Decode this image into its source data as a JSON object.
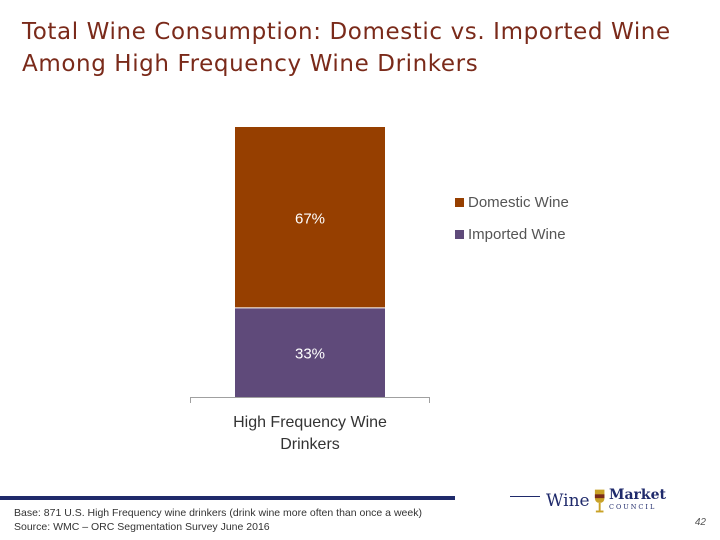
{
  "title_line1": "Total Wine Consumption: Domestic vs. Imported Wine",
  "title_line2": "Among High Frequency Wine Drinkers",
  "chart_data": {
    "type": "bar",
    "stacked": true,
    "categories": [
      "High Frequency Wine Drinkers"
    ],
    "category_lines": [
      "High Frequency Wine",
      "Drinkers"
    ],
    "series": [
      {
        "name": "Domestic Wine",
        "values": [
          67
        ],
        "label": "67%",
        "color": "#963f00"
      },
      {
        "name": "Imported Wine",
        "values": [
          33
        ],
        "label": "33%",
        "color": "#5f4a7a"
      }
    ],
    "ylim": [
      0,
      100
    ],
    "legend_position": "right",
    "grid": false
  },
  "footnote": {
    "line1": "Base: 871 U.S. High Frequency wine drinkers (drink wine more often than once a week)",
    "line2": "Source: WMC – ORC Segmentation Survey June 2016"
  },
  "logo": {
    "word1": "Wine",
    "word2": "Market",
    "word3": "COUNCIL",
    "icon": "wine-glass-icon"
  },
  "page_number": "42"
}
